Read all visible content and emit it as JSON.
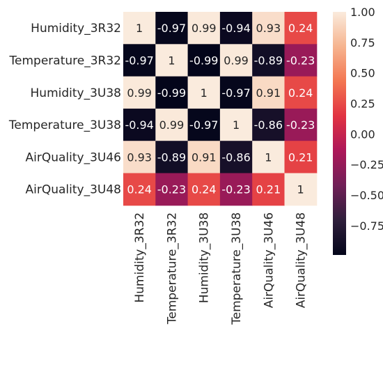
{
  "chart_data": {
    "type": "heatmap",
    "title": "",
    "xlabel": "",
    "ylabel": "",
    "rows": [
      "Humidity_3R32",
      "Temperature_3R32",
      "Humidity_3U38",
      "Temperature_3U38",
      "AirQuality_3U46",
      "AirQuality_3U48"
    ],
    "columns": [
      "Humidity_3R32",
      "Temperature_3R32",
      "Humidity_3U38",
      "Temperature_3U38",
      "AirQuality_3U46",
      "AirQuality_3U48"
    ],
    "values": [
      [
        1,
        -0.97,
        0.99,
        -0.94,
        0.93,
        0.24
      ],
      [
        -0.97,
        1,
        -0.99,
        0.99,
        -0.89,
        -0.23
      ],
      [
        0.99,
        -0.99,
        1,
        -0.97,
        0.91,
        0.24
      ],
      [
        -0.94,
        0.99,
        -0.97,
        1,
        -0.86,
        -0.23
      ],
      [
        0.93,
        -0.89,
        0.91,
        -0.86,
        1,
        0.21
      ],
      [
        0.24,
        -0.23,
        0.24,
        -0.23,
        0.21,
        1
      ]
    ],
    "cell_labels": [
      [
        "1",
        "-0.97",
        "0.99",
        "-0.94",
        "0.93",
        "0.24"
      ],
      [
        "-0.97",
        "1",
        "-0.99",
        "0.99",
        "-0.89",
        "-0.23"
      ],
      [
        "0.99",
        "-0.99",
        "1",
        "-0.97",
        "0.91",
        "0.24"
      ],
      [
        "-0.94",
        "0.99",
        "-0.97",
        "1",
        "-0.86",
        "-0.23"
      ],
      [
        "0.93",
        "-0.89",
        "0.91",
        "-0.86",
        "1",
        "0.21"
      ],
      [
        "0.24",
        "-0.23",
        "0.24",
        "-0.23",
        "0.21",
        "1"
      ]
    ],
    "colorbar": {
      "range": [
        -0.99,
        1.0
      ],
      "ticks": [
        1.0,
        0.75,
        0.5,
        0.25,
        0.0,
        -0.25,
        -0.5,
        -0.75
      ],
      "tick_labels": [
        "1.00",
        "0.75",
        "0.50",
        "0.25",
        "0.00",
        "−0.25",
        "−0.50",
        "−0.75"
      ],
      "colormap": [
        "#03051a",
        "#2e1e3b",
        "#701f57",
        "#ad1759",
        "#e13342",
        "#f37651",
        "#f6b48f",
        "#faebdd"
      ]
    },
    "grid": false
  }
}
